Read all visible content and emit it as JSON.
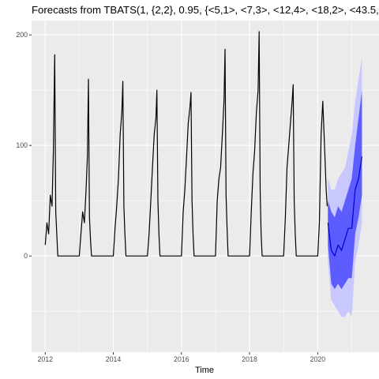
{
  "chart_data": {
    "type": "line",
    "title": "Forecasts from TBATS(1, {2,2}, 0.95, {<5,1>, <7,3>, <12,4>, <18,2>, <43.5,",
    "xlabel": "Time",
    "ylabel": "",
    "xlim": [
      2011.6,
      2021.8
    ],
    "ylim": [
      -87,
      213
    ],
    "x_ticks": [
      2012,
      2014,
      2016,
      2018,
      2020
    ],
    "x_tick_labels": [
      "2012",
      "2014",
      "2016",
      "2018",
      "2020"
    ],
    "y_ticks": [
      0,
      100,
      200
    ],
    "y_tick_labels": [
      "0",
      "100",
      "200"
    ],
    "grid": true,
    "legend": "none",
    "series": [
      {
        "role": "history",
        "color": "#000000",
        "x": [
          2012.0,
          2012.05,
          2012.1,
          2012.15,
          2012.2,
          2012.24,
          2012.28,
          2012.31,
          2012.34,
          2012.37,
          2012.5,
          2012.8,
          2013.0,
          2013.05,
          2013.1,
          2013.15,
          2013.2,
          2013.24,
          2013.27,
          2013.3,
          2013.33,
          2013.36,
          2013.6,
          2013.9,
          2014.0,
          2014.05,
          2014.1,
          2014.15,
          2014.2,
          2014.25,
          2014.28,
          2014.31,
          2014.34,
          2014.37,
          2014.6,
          2014.9,
          2015.0,
          2015.05,
          2015.1,
          2015.15,
          2015.2,
          2015.25,
          2015.28,
          2015.31,
          2015.34,
          2015.37,
          2015.6,
          2015.9,
          2016.0,
          2016.05,
          2016.1,
          2016.15,
          2016.2,
          2016.25,
          2016.28,
          2016.31,
          2016.34,
          2016.37,
          2016.6,
          2016.9,
          2017.0,
          2017.05,
          2017.1,
          2017.15,
          2017.2,
          2017.25,
          2017.28,
          2017.31,
          2017.34,
          2017.37,
          2017.6,
          2017.9,
          2018.0,
          2018.05,
          2018.1,
          2018.15,
          2018.2,
          2018.25,
          2018.28,
          2018.31,
          2018.34,
          2018.37,
          2018.6,
          2018.9,
          2019.0,
          2019.05,
          2019.1,
          2019.15,
          2019.2,
          2019.25,
          2019.28,
          2019.31,
          2019.34,
          2019.37,
          2019.6,
          2019.9,
          2020.0,
          2020.05,
          2020.1,
          2020.15,
          2020.2,
          2020.25,
          2020.28
        ],
        "y": [
          10,
          30,
          20,
          55,
          45,
          95,
          182,
          40,
          20,
          0,
          0,
          0,
          0,
          20,
          40,
          30,
          60,
          90,
          160,
          35,
          15,
          0,
          0,
          0,
          0,
          25,
          45,
          70,
          110,
          130,
          158,
          45,
          20,
          0,
          0,
          0,
          0,
          20,
          50,
          80,
          110,
          125,
          150,
          50,
          20,
          0,
          0,
          0,
          0,
          40,
          60,
          90,
          120,
          135,
          148,
          50,
          20,
          0,
          0,
          0,
          0,
          50,
          70,
          80,
          110,
          140,
          187,
          55,
          25,
          0,
          0,
          0,
          0,
          40,
          75,
          95,
          130,
          150,
          203,
          60,
          20,
          0,
          0,
          0,
          0,
          35,
          80,
          100,
          120,
          140,
          155,
          50,
          20,
          0,
          0,
          0,
          0,
          30,
          110,
          140,
          100,
          60,
          45
        ]
      },
      {
        "role": "point forecast",
        "color": "#0000cc",
        "x": [
          2020.3,
          2020.4,
          2020.5,
          2020.6,
          2020.7,
          2020.8,
          2020.9,
          2021.0,
          2021.1,
          2021.2,
          2021.3
        ],
        "y": [
          30,
          5,
          0,
          10,
          5,
          15,
          25,
          25,
          60,
          70,
          90
        ]
      }
    ],
    "intervals": [
      {
        "level": "80%",
        "color": "#5c5cff",
        "x": [
          2020.3,
          2020.4,
          2020.5,
          2020.6,
          2020.7,
          2020.8,
          2020.9,
          2021.0,
          2021.1,
          2021.2,
          2021.3
        ],
        "lower": [
          10,
          -25,
          -30,
          -25,
          -30,
          -25,
          -20,
          -20,
          20,
          35,
          55
        ],
        "upper": [
          50,
          40,
          35,
          45,
          40,
          50,
          60,
          70,
          100,
          125,
          150
        ]
      },
      {
        "level": "95%",
        "color": "#c8c8ff",
        "x": [
          2020.3,
          2020.4,
          2020.5,
          2020.6,
          2020.7,
          2020.8,
          2020.9,
          2021.0,
          2021.1,
          2021.2,
          2021.3
        ],
        "lower": [
          -5,
          -40,
          -45,
          -50,
          -55,
          -55,
          -50,
          -55,
          -5,
          10,
          30
        ],
        "upper": [
          70,
          60,
          60,
          70,
          75,
          80,
          95,
          110,
          140,
          160,
          180
        ]
      }
    ]
  }
}
